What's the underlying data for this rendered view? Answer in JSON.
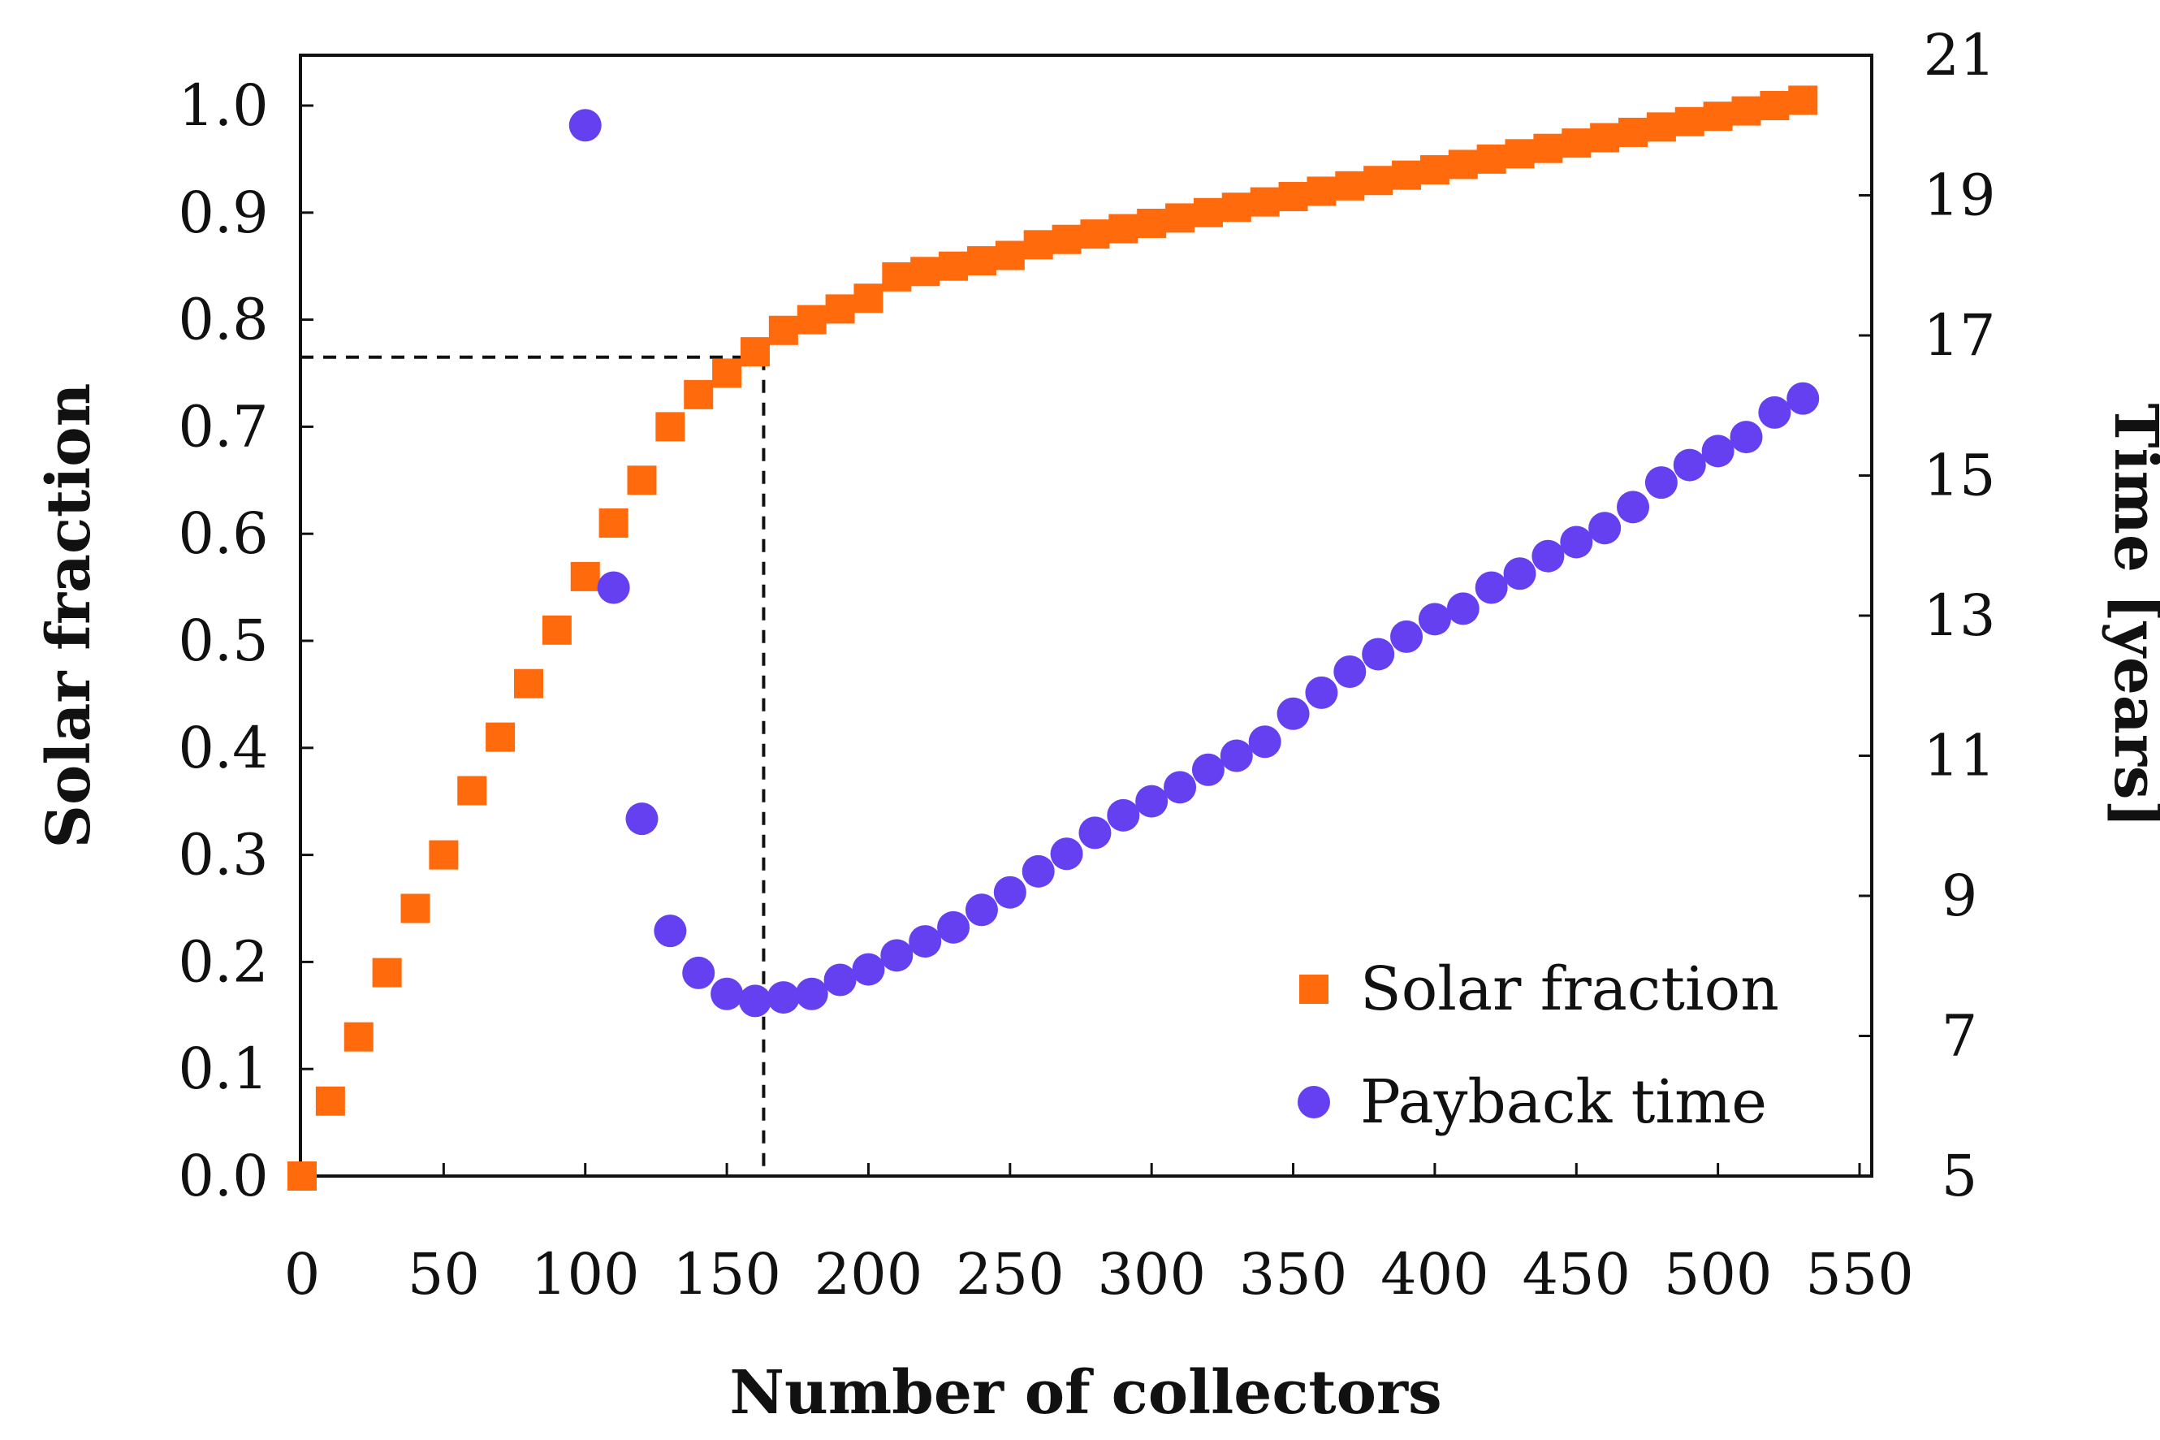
{
  "chart_data": {
    "type": "scatter",
    "xlabel": "Number of collectors",
    "ylabel": "Solar fraction",
    "y2label": "Time [years]",
    "xlim": [
      0,
      550
    ],
    "ylim": [
      0,
      1.0
    ],
    "y2lim": [
      5,
      21
    ],
    "xticks": [
      0,
      50,
      100,
      150,
      200,
      250,
      300,
      350,
      400,
      450,
      500,
      550
    ],
    "yticks": [
      "0.0",
      "0.1",
      "0.2",
      "0.3",
      "0.4",
      "0.5",
      "0.6",
      "0.7",
      "0.8",
      "0.9",
      "1.0"
    ],
    "y2ticks": [
      5,
      7,
      9,
      11,
      13,
      15,
      17,
      19,
      21
    ],
    "legend_position": "bottom-right",
    "reference_point": {
      "x": 163,
      "y": 0.765
    },
    "series": [
      {
        "name": "Solar fraction",
        "axis": "left",
        "marker": "square",
        "color": "#FF6A0D",
        "x": [
          0,
          10,
          20,
          30,
          40,
          50,
          60,
          70,
          80,
          90,
          100,
          110,
          120,
          130,
          140,
          150,
          160,
          170,
          180,
          190,
          200,
          210,
          220,
          230,
          240,
          250,
          260,
          270,
          280,
          290,
          300,
          310,
          320,
          330,
          340,
          350,
          360,
          370,
          380,
          390,
          400,
          410,
          420,
          430,
          440,
          450,
          460,
          470,
          480,
          490,
          500,
          510,
          520,
          530
        ],
        "y": [
          0.0,
          0.07,
          0.13,
          0.19,
          0.25,
          0.3,
          0.36,
          0.41,
          0.46,
          0.51,
          0.56,
          0.61,
          0.65,
          0.7,
          0.73,
          0.75,
          0.77,
          0.79,
          0.8,
          0.81,
          0.82,
          0.84,
          0.845,
          0.85,
          0.855,
          0.86,
          0.87,
          0.875,
          0.88,
          0.885,
          0.89,
          0.895,
          0.9,
          0.905,
          0.91,
          0.915,
          0.92,
          0.925,
          0.93,
          0.935,
          0.94,
          0.945,
          0.95,
          0.955,
          0.96,
          0.965,
          0.97,
          0.975,
          0.98,
          0.985,
          0.99,
          0.995,
          1.0,
          1.005
        ]
      },
      {
        "name": "Payback time",
        "axis": "right",
        "marker": "circle",
        "color": "#6440F0",
        "x": [
          100,
          110,
          120,
          130,
          140,
          150,
          160,
          170,
          180,
          190,
          200,
          210,
          220,
          230,
          240,
          250,
          260,
          270,
          280,
          290,
          300,
          310,
          320,
          330,
          340,
          350,
          360,
          370,
          380,
          390,
          400,
          410,
          420,
          430,
          440,
          450,
          460,
          470,
          480,
          490,
          500,
          510,
          520,
          530
        ],
        "y": [
          20.0,
          13.4,
          10.1,
          8.5,
          7.9,
          7.6,
          7.5,
          7.55,
          7.6,
          7.8,
          7.95,
          8.15,
          8.35,
          8.55,
          8.8,
          9.05,
          9.35,
          9.6,
          9.9,
          10.15,
          10.35,
          10.55,
          10.8,
          11.0,
          11.2,
          11.6,
          11.9,
          12.2,
          12.45,
          12.7,
          12.95,
          13.1,
          13.4,
          13.6,
          13.85,
          14.05,
          14.25,
          14.55,
          14.9,
          15.15,
          15.35,
          15.55,
          15.9,
          16.1
        ]
      }
    ]
  }
}
